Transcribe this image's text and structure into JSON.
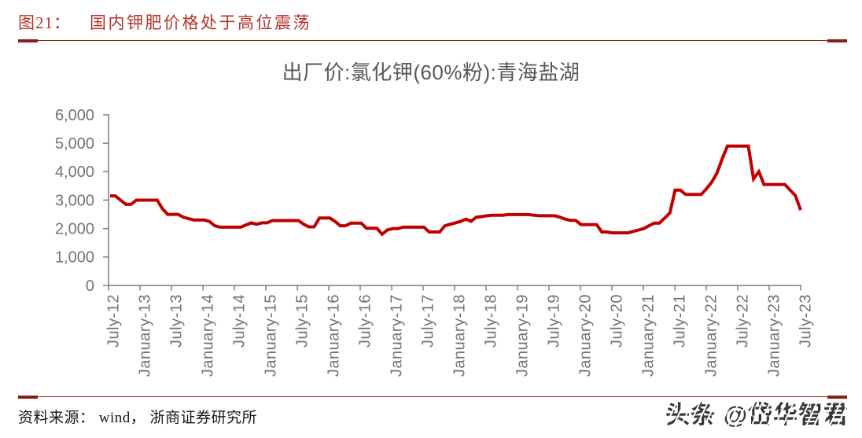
{
  "header": {
    "figure_label": "图21：",
    "figure_title": "国内钾肥价格处于高位震荡",
    "accent_color": "#B5322B",
    "rule_color": "#93211A"
  },
  "chart": {
    "title": "出厂价:氯化钾(60%粉):青海盐湖",
    "title_color": "#595959"
  },
  "chart_data": {
    "type": "line",
    "title": "出厂价:氯化钾(60%粉):青海盐湖",
    "x_start_month": "July-12",
    "x_end_month": "July-23",
    "x_frequency": "monthly",
    "x_tick_labels": [
      "July-12",
      "January-13",
      "July-13",
      "January-14",
      "July-14",
      "January-15",
      "July-15",
      "January-16",
      "July-16",
      "January-17",
      "July-17",
      "January-18",
      "July-18",
      "January-19",
      "July-19",
      "January-20",
      "July-20",
      "January-21",
      "July-21",
      "January-22",
      "July-22",
      "January-23",
      "July-23"
    ],
    "y_tick_labels": [
      "0",
      "1,000",
      "2,000",
      "3,000",
      "4,000",
      "5,000",
      "6,000"
    ],
    "ylim": [
      0,
      6000
    ],
    "grid": false,
    "legend": "none",
    "line_color": "#C00000",
    "axis_color": "#7F7F7F",
    "tick_label_color": "#737373",
    "values": [
      3150,
      3150,
      3000,
      2850,
      2850,
      3000,
      3000,
      3000,
      3000,
      3000,
      2700,
      2500,
      2500,
      2500,
      2400,
      2350,
      2300,
      2300,
      2300,
      2250,
      2100,
      2050,
      2050,
      2050,
      2050,
      2050,
      2130,
      2200,
      2150,
      2200,
      2200,
      2280,
      2280,
      2280,
      2280,
      2280,
      2280,
      2150,
      2060,
      2060,
      2370,
      2370,
      2370,
      2250,
      2100,
      2100,
      2190,
      2190,
      2190,
      2010,
      2010,
      2010,
      1800,
      1950,
      2000,
      2000,
      2050,
      2050,
      2050,
      2050,
      2050,
      1880,
      1880,
      1880,
      2100,
      2150,
      2200,
      2250,
      2330,
      2260,
      2400,
      2420,
      2450,
      2470,
      2470,
      2470,
      2490,
      2490,
      2490,
      2490,
      2490,
      2470,
      2450,
      2450,
      2450,
      2450,
      2400,
      2330,
      2290,
      2290,
      2140,
      2140,
      2140,
      2140,
      1880,
      1880,
      1850,
      1850,
      1850,
      1850,
      1900,
      1950,
      2000,
      2100,
      2190,
      2190,
      2370,
      2550,
      3350,
      3350,
      3200,
      3200,
      3200,
      3200,
      3400,
      3630,
      3950,
      4450,
      4900,
      4900,
      4900,
      4900,
      4900,
      3750,
      4000,
      3550,
      3550,
      3550,
      3550,
      3550,
      3350,
      3160,
      2650
    ]
  },
  "footer": {
    "source": "资料来源： wind， 浙商证券研究所",
    "watermark": "头条 @岱华智君"
  }
}
